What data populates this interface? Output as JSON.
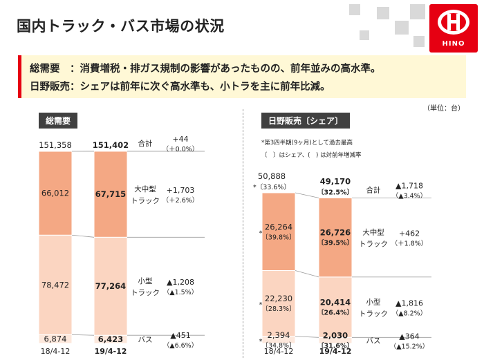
{
  "title": "国内トラック・バス市場の状況",
  "summary": [
    "総需要　：消費増税・排ガス規制の影響があったものの、前年並みの高水準。",
    "日野販売：シェアは前年に次ぐ高水準も、小トラを主に前年比減。"
  ],
  "unit_note": "（単位：台）",
  "logo_text": "HINO",
  "colors": {
    "large": "#f4a884",
    "small": "#fbd5c1",
    "bus": "#fde8dc",
    "accent": "#e60012"
  },
  "chart_data": [
    {
      "type": "bar",
      "stacked": true,
      "section_label": "総需要",
      "categories": [
        "18/4-12",
        "19/4-12"
      ],
      "series": [
        {
          "name": "大中型トラック",
          "label_lines": [
            "大中型",
            "トラック"
          ],
          "values": [
            66012,
            67715
          ],
          "display": [
            "66,012",
            "67,715"
          ],
          "change": "+1,703",
          "change_pct": "（＋2.6%）"
        },
        {
          "name": "小型トラック",
          "label_lines": [
            "小型",
            "トラック"
          ],
          "values": [
            78472,
            77264
          ],
          "display": [
            "78,472",
            "77,264"
          ],
          "change": "▲1,208",
          "change_pct": "（▲1.5%）"
        },
        {
          "name": "バス",
          "label_lines": [
            "バス"
          ],
          "values": [
            6874,
            6423
          ],
          "display": [
            "6,874",
            "6,423"
          ],
          "change": "▲451",
          "change_pct": "（▲6.6%）"
        }
      ],
      "totals": {
        "label": "合計",
        "values": [
          151358,
          151402
        ],
        "display": [
          "151,358",
          "151,402"
        ],
        "change": "+44",
        "change_pct": "（＋0.0%）"
      }
    },
    {
      "type": "bar",
      "stacked": true,
      "section_label": "日野販売〔シェア〕",
      "notes": [
        "*第3四半期(9ヶ月)として過去最高",
        "〔　〕はシェア、(　) は対前年増減率"
      ],
      "categories": [
        "18/4-12",
        "19/4-12"
      ],
      "series": [
        {
          "name": "大中型トラック",
          "label_lines": [
            "大中型",
            "トラック"
          ],
          "values": [
            26264,
            26726
          ],
          "display": [
            "26,264",
            "26,726"
          ],
          "share": [
            "〔39.8%〕",
            "〔39.5%〕"
          ],
          "star": [
            true,
            false
          ],
          "change": "+462",
          "change_pct": "（＋1.8%）"
        },
        {
          "name": "小型トラック",
          "label_lines": [
            "小型",
            "トラック"
          ],
          "values": [
            22230,
            20414
          ],
          "display": [
            "22,230",
            "20,414"
          ],
          "share": [
            "〔28.3%〕",
            "〔26.4%〕"
          ],
          "star": [
            true,
            false
          ],
          "change": "▲1,816",
          "change_pct": "（▲8.2%）"
        },
        {
          "name": "バス",
          "label_lines": [
            "バス"
          ],
          "values": [
            2394,
            2030
          ],
          "display": [
            "2,394",
            "2,030"
          ],
          "share": [
            "〔34.8%〕",
            "〔31.6%〕"
          ],
          "star": [
            true,
            false
          ],
          "change": "▲364",
          "change_pct": "（▲15.2%）"
        }
      ],
      "totals": {
        "label": "合計",
        "values": [
          50888,
          49170
        ],
        "display": [
          "50,888",
          "49,170"
        ],
        "share": [
          "〔33.6%〕",
          "〔32.5%〕"
        ],
        "star": [
          true,
          false
        ],
        "change": "▲1,718",
        "change_pct": "（▲3.4%）"
      }
    }
  ]
}
